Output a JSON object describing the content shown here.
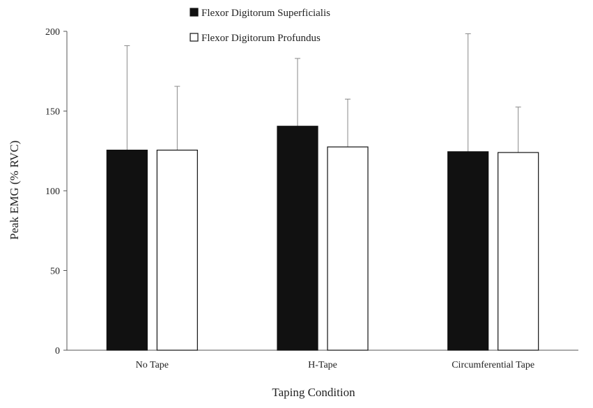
{
  "chart_data": {
    "type": "bar",
    "xlabel": "Taping Condition",
    "ylabel": "Peak EMG (% RVC)",
    "ylim": [
      0,
      200
    ],
    "yticks": [
      0,
      50,
      100,
      150,
      200
    ],
    "categories": [
      "No Tape",
      "H-Tape",
      "Circumferential Tape"
    ],
    "series": [
      {
        "name": "Flexor Digitorum Superficialis",
        "color": "#111111",
        "values": [
          125.5,
          140.5,
          124.5
        ],
        "error_upper": [
          191,
          183,
          198.5
        ]
      },
      {
        "name": "Flexor Digitorum Profundus",
        "color": "#ffffff",
        "values": [
          125.5,
          127.5,
          124
        ],
        "error_upper": [
          165.5,
          157.5,
          152.5
        ]
      }
    ],
    "error_bars": "upper",
    "legend_position": "top-center",
    "grid": false
  }
}
